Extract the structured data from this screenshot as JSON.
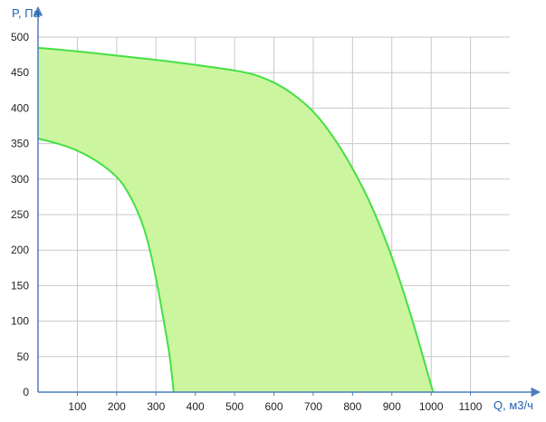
{
  "chart_data": {
    "type": "area",
    "title": "",
    "xlabel": "Q, м3/ч",
    "ylabel": "P, Па",
    "xlim": [
      0,
      1200
    ],
    "ylim": [
      0,
      500
    ],
    "x_ticks": [
      100,
      200,
      300,
      400,
      500,
      600,
      700,
      800,
      900,
      1000,
      1100
    ],
    "y_ticks": [
      0,
      50,
      100,
      150,
      200,
      250,
      300,
      350,
      400,
      450,
      500
    ],
    "grid": true,
    "legend": "none",
    "series": [
      {
        "role": "upper_curve",
        "points": [
          [
            0,
            485
          ],
          [
            100,
            480
          ],
          [
            200,
            474
          ],
          [
            300,
            468
          ],
          [
            400,
            461
          ],
          [
            500,
            453
          ],
          [
            550,
            447
          ],
          [
            600,
            436
          ],
          [
            650,
            419
          ],
          [
            700,
            395
          ],
          [
            750,
            360
          ],
          [
            800,
            315
          ],
          [
            850,
            260
          ],
          [
            900,
            190
          ],
          [
            950,
            105
          ],
          [
            1005,
            0
          ]
        ]
      },
      {
        "role": "lower_curve",
        "points": [
          [
            0,
            357
          ],
          [
            50,
            350
          ],
          [
            100,
            340
          ],
          [
            150,
            325
          ],
          [
            200,
            303
          ],
          [
            230,
            280
          ],
          [
            260,
            245
          ],
          [
            280,
            210
          ],
          [
            300,
            160
          ],
          [
            320,
            100
          ],
          [
            335,
            50
          ],
          [
            345,
            0
          ]
        ]
      }
    ],
    "colors": {
      "fill": "#ccf5a0",
      "curve": "#44e044",
      "axis": "#4a7ebb",
      "grid": "#c8c8c8",
      "axis_title": "#1f5fb4"
    }
  }
}
